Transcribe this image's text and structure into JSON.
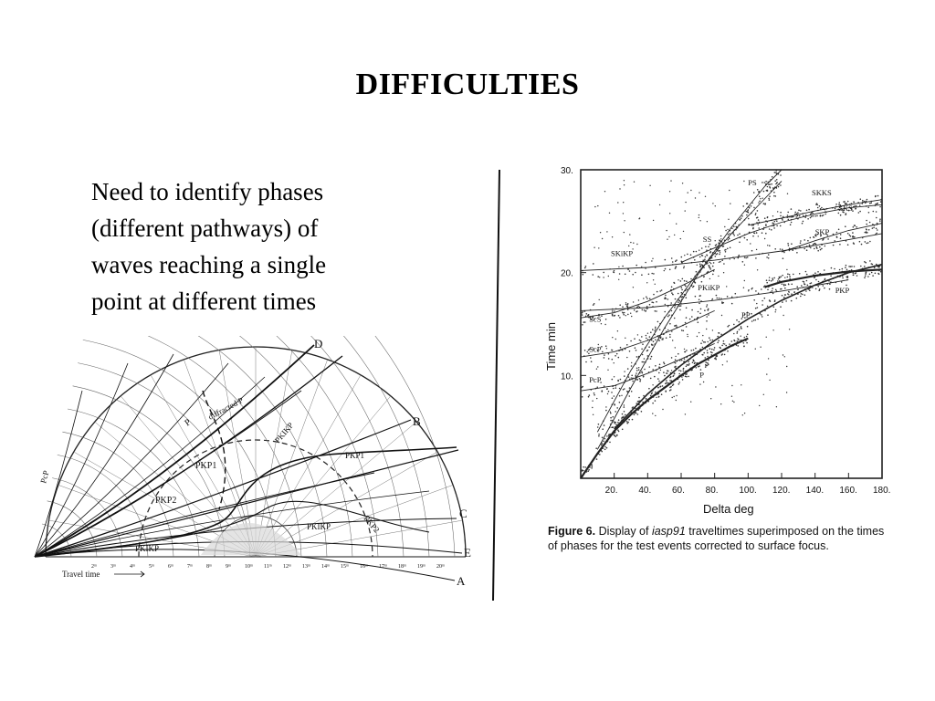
{
  "slide": {
    "title": "DIFFICULTIES",
    "text_lines": [
      "Need to identify phases",
      "(different pathways) of",
      "waves reaching a single",
      "point at different times"
    ]
  },
  "fan_figure": {
    "edge_labels": [
      "D",
      "B",
      "C",
      "E",
      "A"
    ],
    "phase_labels": [
      "P",
      "diffracted P",
      "PKIKP",
      "PKP1",
      "PKP2",
      "PKP2",
      "PKP1",
      "PKIKP",
      "PKIKP",
      "PcP"
    ],
    "travel_time_label": "Travel time",
    "time_ticks": [
      "2ᵐ",
      "3ᵐ",
      "4ᵐ",
      "5ᵐ",
      "6ᵐ",
      "7ᵐ",
      "8ᵐ",
      "9ᵐ",
      "10ᵐ",
      "11ᵐ",
      "12ᵐ",
      "13ᵐ",
      "14ᵐ",
      "15ᵐ",
      "16ᵐ",
      "17ᵐ",
      "18ᵐ",
      "19ᵐ",
      "20ᵐ"
    ]
  },
  "traveltime_figure": {
    "y_ticks": [
      "30.",
      "20.",
      "10."
    ],
    "x_ticks": [
      "20.",
      "40.",
      "60.",
      "80.",
      "100.",
      "120.",
      "140.",
      "160.",
      "180."
    ],
    "ylabel": "Time min",
    "xlabel": "Delta deg",
    "phase_labels": [
      "PS",
      "SKKS",
      "SKS",
      "SS",
      "SKP",
      "SKiKP",
      "PKiKP",
      "PKP",
      "PP",
      "ScS",
      "ScP",
      "PcP",
      "P"
    ],
    "caption_prefix": "Figure 6.",
    "caption_text_1": "Display of",
    "caption_italic": "iasp91",
    "caption_text_2": "traveltimes superimposed on the times of phases for the test events corrected to surface focus."
  },
  "chart_data": {
    "type": "scatter",
    "xlabel": "Delta deg",
    "ylabel": "Time min",
    "xlim": [
      0,
      180
    ],
    "ylim": [
      0,
      30
    ],
    "series": [
      {
        "name": "P",
        "x": [
          0,
          10,
          20,
          30,
          40,
          50,
          60,
          70,
          80,
          90,
          100
        ],
        "y": [
          0,
          2.4,
          4.6,
          6.2,
          7.6,
          8.8,
          10.0,
          11.1,
          12.0,
          12.9,
          13.6
        ]
      },
      {
        "name": "PP",
        "x": [
          20,
          40,
          60,
          80,
          100,
          120,
          140,
          160,
          180
        ],
        "y": [
          4.8,
          8.2,
          11.0,
          13.4,
          15.5,
          17.3,
          18.8,
          20.0,
          20.8
        ]
      },
      {
        "name": "PKP",
        "x": [
          110,
          120,
          140,
          160,
          180
        ],
        "y": [
          18.6,
          19.1,
          19.7,
          20.1,
          20.3
        ]
      },
      {
        "name": "PKiKP",
        "x": [
          0,
          40,
          80,
          120,
          160
        ],
        "y": [
          16.3,
          16.6,
          17.3,
          18.2,
          19.3
        ]
      },
      {
        "name": "SKiKP",
        "x": [
          0,
          40,
          80,
          120,
          160,
          180
        ],
        "y": [
          20.2,
          20.5,
          21.2,
          22.1,
          23.2,
          23.8
        ]
      },
      {
        "name": "PcP",
        "x": [
          0,
          20,
          40,
          60,
          80
        ],
        "y": [
          8.5,
          9.0,
          10.2,
          11.6,
          13.1
        ]
      },
      {
        "name": "ScP",
        "x": [
          0,
          20,
          40,
          60,
          80
        ],
        "y": [
          11.8,
          12.3,
          13.4,
          14.8,
          16.3
        ]
      },
      {
        "name": "ScS",
        "x": [
          0,
          20,
          40,
          60,
          80
        ],
        "y": [
          15.6,
          16.1,
          17.2,
          18.7,
          20.3
        ]
      },
      {
        "name": "SS",
        "x": [
          10,
          30,
          50,
          70,
          90,
          110,
          120
        ],
        "y": [
          4.5,
          10.5,
          15.6,
          20.0,
          23.8,
          27.2,
          28.9
        ]
      },
      {
        "name": "PS",
        "x": [
          10,
          30,
          50,
          70,
          90,
          110,
          120
        ],
        "y": [
          2.8,
          8.8,
          14.6,
          19.8,
          24.4,
          28.4,
          30.0
        ]
      },
      {
        "name": "SKS",
        "x": [
          60,
          80,
          100,
          120,
          140,
          160,
          180
        ],
        "y": [
          21.0,
          22.4,
          23.8,
          24.9,
          25.7,
          26.3,
          26.6
        ]
      },
      {
        "name": "SKKS",
        "x": [
          100,
          120,
          140,
          160,
          180
        ],
        "y": [
          24.6,
          25.3,
          26.0,
          26.6,
          27.1
        ]
      },
      {
        "name": "SKP",
        "x": [
          120,
          140,
          160,
          180
        ],
        "y": [
          22.0,
          23.1,
          24.1,
          24.8
        ]
      }
    ]
  }
}
